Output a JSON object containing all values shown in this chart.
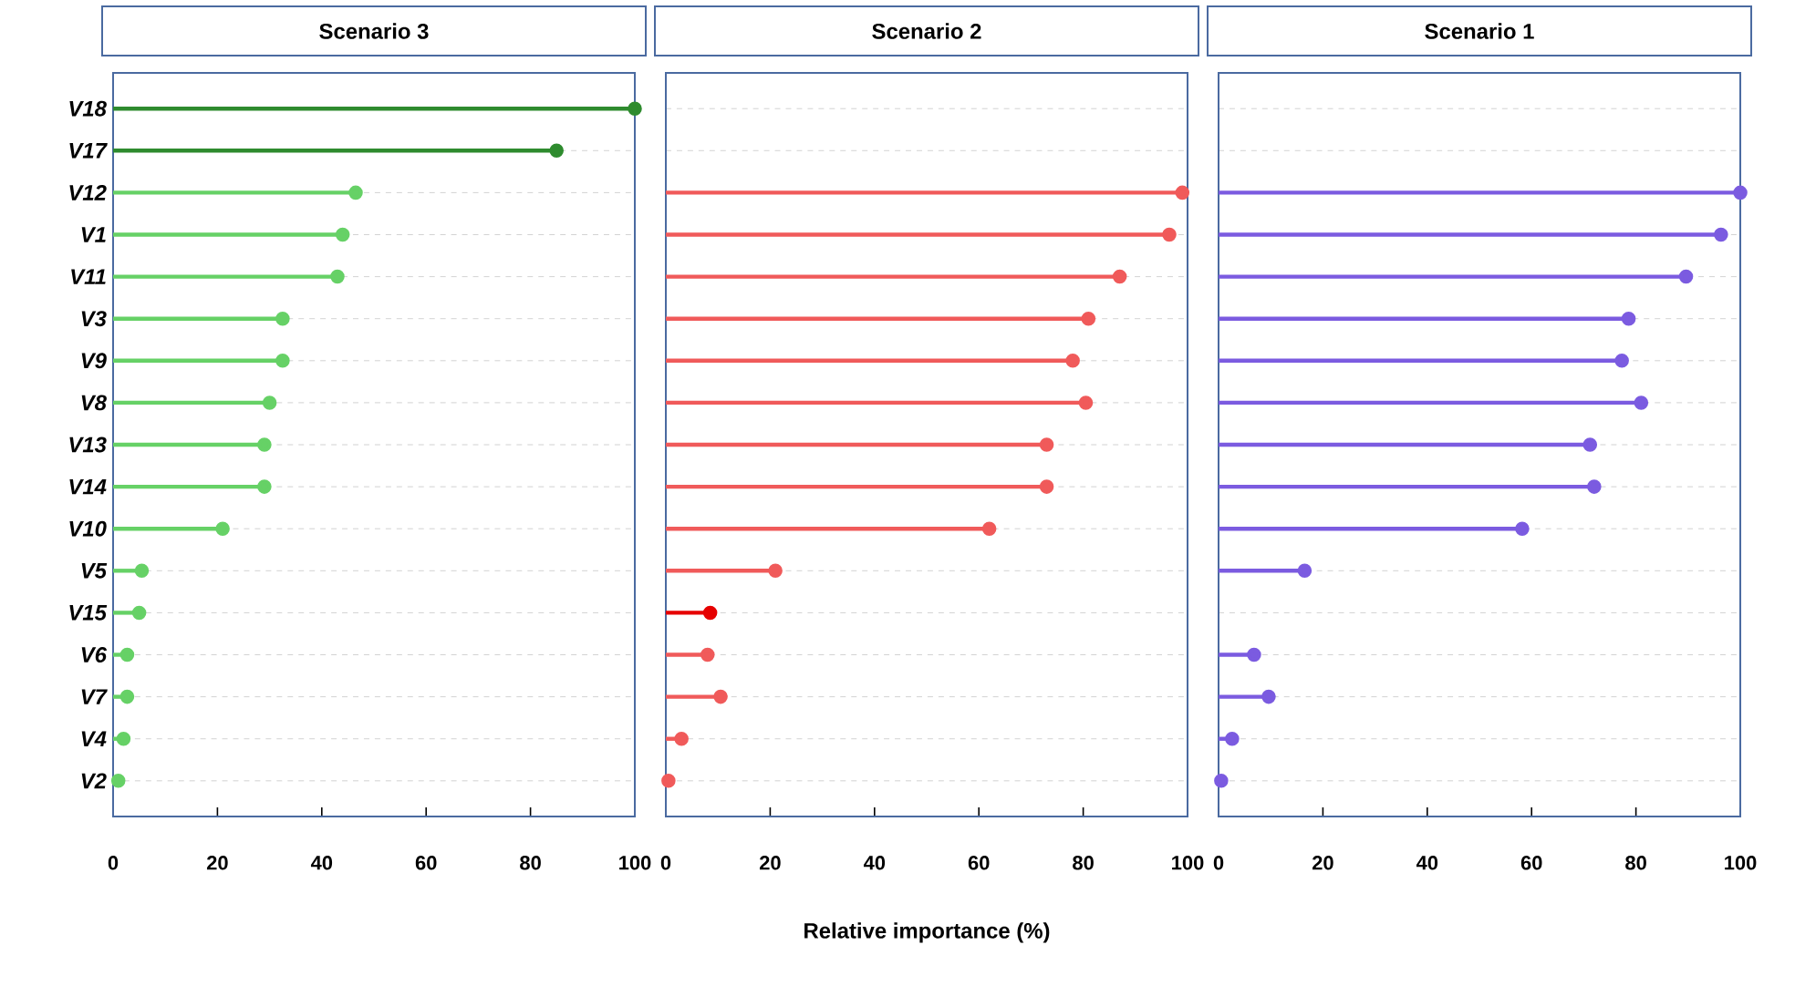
{
  "chart_data": [
    {
      "type": "lollipop",
      "title": "Scenario 3",
      "orientation": "horizontal",
      "marker": "circle",
      "grid": "y",
      "categories": [
        "V18",
        "V17",
        "V12",
        "V1",
        "V11",
        "V3",
        "V9",
        "V8",
        "V13",
        "V14",
        "V10",
        "V5",
        "V15",
        "V6",
        "V7",
        "V4",
        "V2"
      ],
      "values": [
        100,
        85,
        46.5,
        44,
        43,
        32.5,
        32.5,
        30,
        29,
        29,
        21,
        5.5,
        5,
        2.7,
        2.7,
        2,
        1
      ],
      "colors": [
        "#2e8b2e",
        "#2e8b2e",
        "#66d166",
        "#66d166",
        "#66d166",
        "#66d166",
        "#66d166",
        "#66d166",
        "#66d166",
        "#66d166",
        "#66d166",
        "#66d166",
        "#66d166",
        "#66d166",
        "#66d166",
        "#66d166",
        "#66d166"
      ],
      "xlim": [
        0,
        100
      ],
      "xticks": [
        0,
        20,
        40,
        60,
        80,
        100
      ]
    },
    {
      "type": "lollipop",
      "title": "Scenario 2",
      "orientation": "horizontal",
      "marker": "circle",
      "grid": "y",
      "tick_labels": "x",
      "xlabel": "Relative importance (%)",
      "categories": [
        null,
        null,
        null,
        null,
        null,
        null,
        null,
        null,
        null,
        null,
        null,
        null,
        null,
        null,
        null,
        null,
        null
      ],
      "values": [
        null,
        null,
        99,
        96.5,
        87,
        81,
        78,
        80.5,
        73,
        73,
        62,
        21,
        8.5,
        8,
        10.5,
        3,
        0.5
      ],
      "colors": [
        "#f05a5a",
        "#f05a5a",
        "#f05a5a",
        "#f05a5a",
        "#f05a5a",
        "#f05a5a",
        "#f05a5a",
        "#f05a5a",
        "#f05a5a",
        "#f05a5a",
        "#f05a5a",
        "#f05a5a",
        "#e60000",
        "#f05a5a",
        "#f05a5a",
        "#f05a5a",
        "#f05a5a"
      ],
      "xlim": [
        0,
        100
      ],
      "xticks": [
        0,
        20,
        40,
        60,
        80,
        100
      ]
    },
    {
      "type": "lollipop",
      "title": "Scenario 1",
      "orientation": "horizontal",
      "marker": "circle",
      "grid": "y",
      "tick_labels": "x",
      "categories": [
        null,
        null,
        null,
        null,
        null,
        null,
        null,
        null,
        null,
        null,
        null,
        null,
        null,
        null,
        null,
        null,
        null
      ],
      "values": [
        null,
        null,
        100,
        96.3,
        89.6,
        78.6,
        77.3,
        81,
        71.2,
        72,
        58.2,
        16.5,
        null,
        6.8,
        9.6,
        2.6,
        0.5
      ],
      "colors": [
        "#7b5be0",
        "#7b5be0",
        "#7b5be0",
        "#7b5be0",
        "#7b5be0",
        "#7b5be0",
        "#7b5be0",
        "#7b5be0",
        "#7b5be0",
        "#7b5be0",
        "#7b5be0",
        "#7b5be0",
        "#7b5be0",
        "#7b5be0",
        "#7b5be0",
        "#7b5be0",
        "#7b5be0"
      ],
      "xlim": [
        0,
        100
      ],
      "xticks": [
        0,
        20,
        40,
        60,
        80,
        100
      ]
    }
  ]
}
